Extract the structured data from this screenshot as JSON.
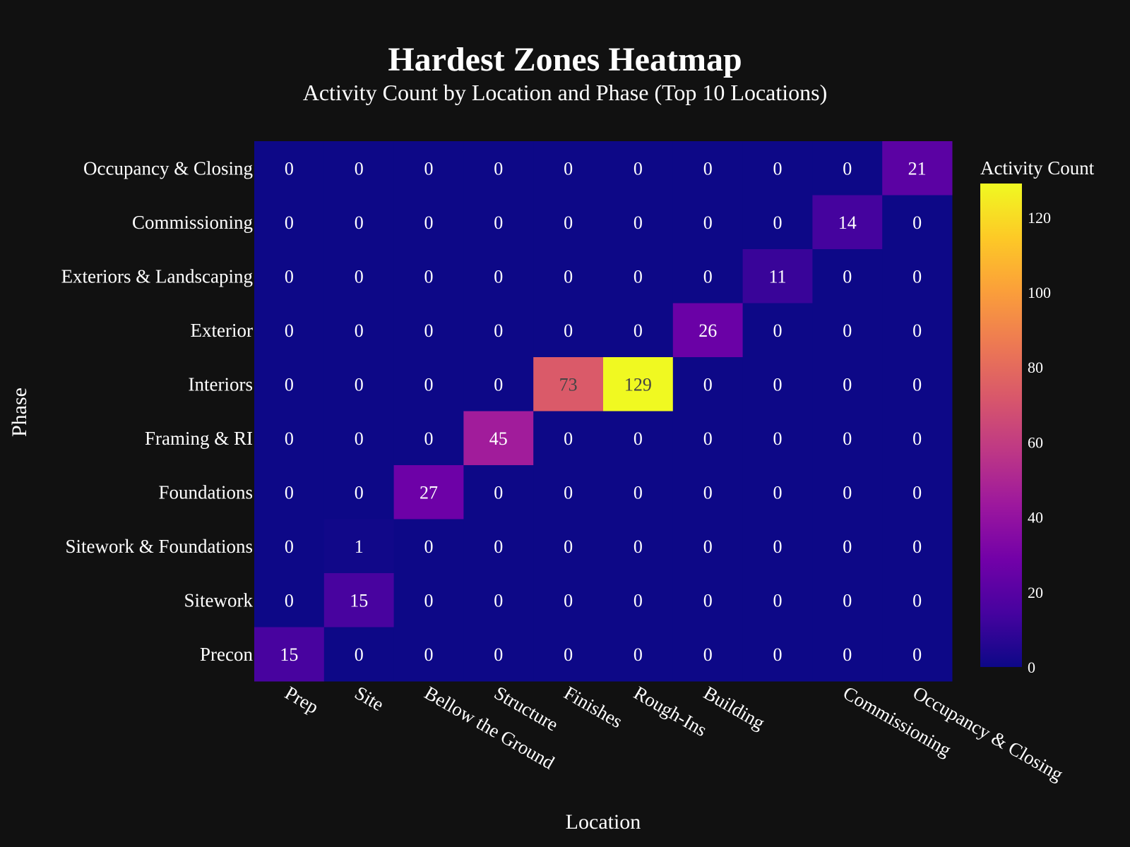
{
  "chart_data": {
    "type": "heatmap",
    "title": "Hardest Zones Heatmap",
    "subtitle": "Activity Count by Location and Phase (Top 10 Locations)",
    "xlabel": "Location",
    "ylabel": "Phase",
    "x_categories": [
      "Prep",
      "Site",
      "Bellow the Ground",
      "Structure",
      "Finishes",
      "Rough-Ins",
      "Building",
      "",
      "Commissioning",
      "Occupancy & Closing"
    ],
    "y_categories": [
      "Occupancy & Closing",
      "Commissioning",
      "Exteriors & Landscaping",
      "Exterior",
      "Interiors",
      "Framing & RI",
      "Foundations",
      "Sitework & Foundations",
      "Sitework",
      "Precon"
    ],
    "values": [
      [
        0,
        0,
        0,
        0,
        0,
        0,
        0,
        0,
        0,
        21
      ],
      [
        0,
        0,
        0,
        0,
        0,
        0,
        0,
        0,
        14,
        0
      ],
      [
        0,
        0,
        0,
        0,
        0,
        0,
        0,
        11,
        0,
        0
      ],
      [
        0,
        0,
        0,
        0,
        0,
        0,
        26,
        0,
        0,
        0
      ],
      [
        0,
        0,
        0,
        0,
        73,
        129,
        0,
        0,
        0,
        0
      ],
      [
        0,
        0,
        0,
        45,
        0,
        0,
        0,
        0,
        0,
        0
      ],
      [
        0,
        0,
        27,
        0,
        0,
        0,
        0,
        0,
        0,
        0
      ],
      [
        0,
        1,
        0,
        0,
        0,
        0,
        0,
        0,
        0,
        0
      ],
      [
        0,
        15,
        0,
        0,
        0,
        0,
        0,
        0,
        0,
        0
      ],
      [
        15,
        0,
        0,
        0,
        0,
        0,
        0,
        0,
        0,
        0
      ]
    ],
    "colorbar": {
      "title": "Activity Count",
      "range": [
        0,
        129
      ],
      "ticks": [
        0,
        20,
        40,
        60,
        80,
        100,
        120
      ],
      "colorscale": "plasma"
    },
    "grid": false
  }
}
